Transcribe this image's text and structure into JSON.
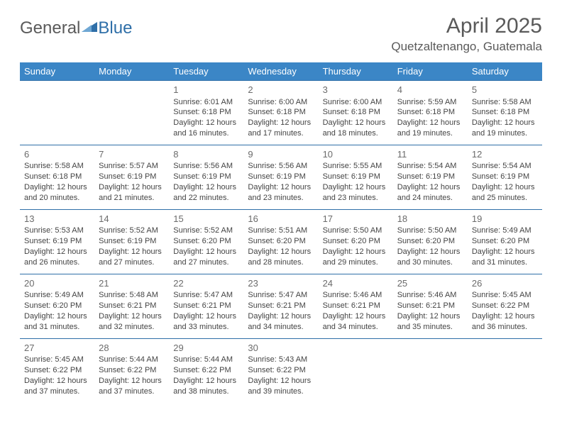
{
  "brand": {
    "part1": "General",
    "part2": "Blue"
  },
  "title": "April 2025",
  "location": "Quetzaltenango, Guatemala",
  "colors": {
    "header_bg": "#3b86c6",
    "header_text": "#ffffff",
    "border": "#2f6fa8",
    "text": "#444444",
    "title_text": "#5a5a5a"
  },
  "day_headers": [
    "Sunday",
    "Monday",
    "Tuesday",
    "Wednesday",
    "Thursday",
    "Friday",
    "Saturday"
  ],
  "weeks": [
    [
      null,
      null,
      {
        "n": "1",
        "sunrise": "6:01 AM",
        "sunset": "6:18 PM",
        "daylight": "12 hours and 16 minutes."
      },
      {
        "n": "2",
        "sunrise": "6:00 AM",
        "sunset": "6:18 PM",
        "daylight": "12 hours and 17 minutes."
      },
      {
        "n": "3",
        "sunrise": "6:00 AM",
        "sunset": "6:18 PM",
        "daylight": "12 hours and 18 minutes."
      },
      {
        "n": "4",
        "sunrise": "5:59 AM",
        "sunset": "6:18 PM",
        "daylight": "12 hours and 19 minutes."
      },
      {
        "n": "5",
        "sunrise": "5:58 AM",
        "sunset": "6:18 PM",
        "daylight": "12 hours and 19 minutes."
      }
    ],
    [
      {
        "n": "6",
        "sunrise": "5:58 AM",
        "sunset": "6:18 PM",
        "daylight": "12 hours and 20 minutes."
      },
      {
        "n": "7",
        "sunrise": "5:57 AM",
        "sunset": "6:19 PM",
        "daylight": "12 hours and 21 minutes."
      },
      {
        "n": "8",
        "sunrise": "5:56 AM",
        "sunset": "6:19 PM",
        "daylight": "12 hours and 22 minutes."
      },
      {
        "n": "9",
        "sunrise": "5:56 AM",
        "sunset": "6:19 PM",
        "daylight": "12 hours and 23 minutes."
      },
      {
        "n": "10",
        "sunrise": "5:55 AM",
        "sunset": "6:19 PM",
        "daylight": "12 hours and 23 minutes."
      },
      {
        "n": "11",
        "sunrise": "5:54 AM",
        "sunset": "6:19 PM",
        "daylight": "12 hours and 24 minutes."
      },
      {
        "n": "12",
        "sunrise": "5:54 AM",
        "sunset": "6:19 PM",
        "daylight": "12 hours and 25 minutes."
      }
    ],
    [
      {
        "n": "13",
        "sunrise": "5:53 AM",
        "sunset": "6:19 PM",
        "daylight": "12 hours and 26 minutes."
      },
      {
        "n": "14",
        "sunrise": "5:52 AM",
        "sunset": "6:19 PM",
        "daylight": "12 hours and 27 minutes."
      },
      {
        "n": "15",
        "sunrise": "5:52 AM",
        "sunset": "6:20 PM",
        "daylight": "12 hours and 27 minutes."
      },
      {
        "n": "16",
        "sunrise": "5:51 AM",
        "sunset": "6:20 PM",
        "daylight": "12 hours and 28 minutes."
      },
      {
        "n": "17",
        "sunrise": "5:50 AM",
        "sunset": "6:20 PM",
        "daylight": "12 hours and 29 minutes."
      },
      {
        "n": "18",
        "sunrise": "5:50 AM",
        "sunset": "6:20 PM",
        "daylight": "12 hours and 30 minutes."
      },
      {
        "n": "19",
        "sunrise": "5:49 AM",
        "sunset": "6:20 PM",
        "daylight": "12 hours and 31 minutes."
      }
    ],
    [
      {
        "n": "20",
        "sunrise": "5:49 AM",
        "sunset": "6:20 PM",
        "daylight": "12 hours and 31 minutes."
      },
      {
        "n": "21",
        "sunrise": "5:48 AM",
        "sunset": "6:21 PM",
        "daylight": "12 hours and 32 minutes."
      },
      {
        "n": "22",
        "sunrise": "5:47 AM",
        "sunset": "6:21 PM",
        "daylight": "12 hours and 33 minutes."
      },
      {
        "n": "23",
        "sunrise": "5:47 AM",
        "sunset": "6:21 PM",
        "daylight": "12 hours and 34 minutes."
      },
      {
        "n": "24",
        "sunrise": "5:46 AM",
        "sunset": "6:21 PM",
        "daylight": "12 hours and 34 minutes."
      },
      {
        "n": "25",
        "sunrise": "5:46 AM",
        "sunset": "6:21 PM",
        "daylight": "12 hours and 35 minutes."
      },
      {
        "n": "26",
        "sunrise": "5:45 AM",
        "sunset": "6:22 PM",
        "daylight": "12 hours and 36 minutes."
      }
    ],
    [
      {
        "n": "27",
        "sunrise": "5:45 AM",
        "sunset": "6:22 PM",
        "daylight": "12 hours and 37 minutes."
      },
      {
        "n": "28",
        "sunrise": "5:44 AM",
        "sunset": "6:22 PM",
        "daylight": "12 hours and 37 minutes."
      },
      {
        "n": "29",
        "sunrise": "5:44 AM",
        "sunset": "6:22 PM",
        "daylight": "12 hours and 38 minutes."
      },
      {
        "n": "30",
        "sunrise": "5:43 AM",
        "sunset": "6:22 PM",
        "daylight": "12 hours and 39 minutes."
      },
      null,
      null,
      null
    ]
  ],
  "labels": {
    "sunrise": "Sunrise:",
    "sunset": "Sunset:",
    "daylight": "Daylight:"
  }
}
